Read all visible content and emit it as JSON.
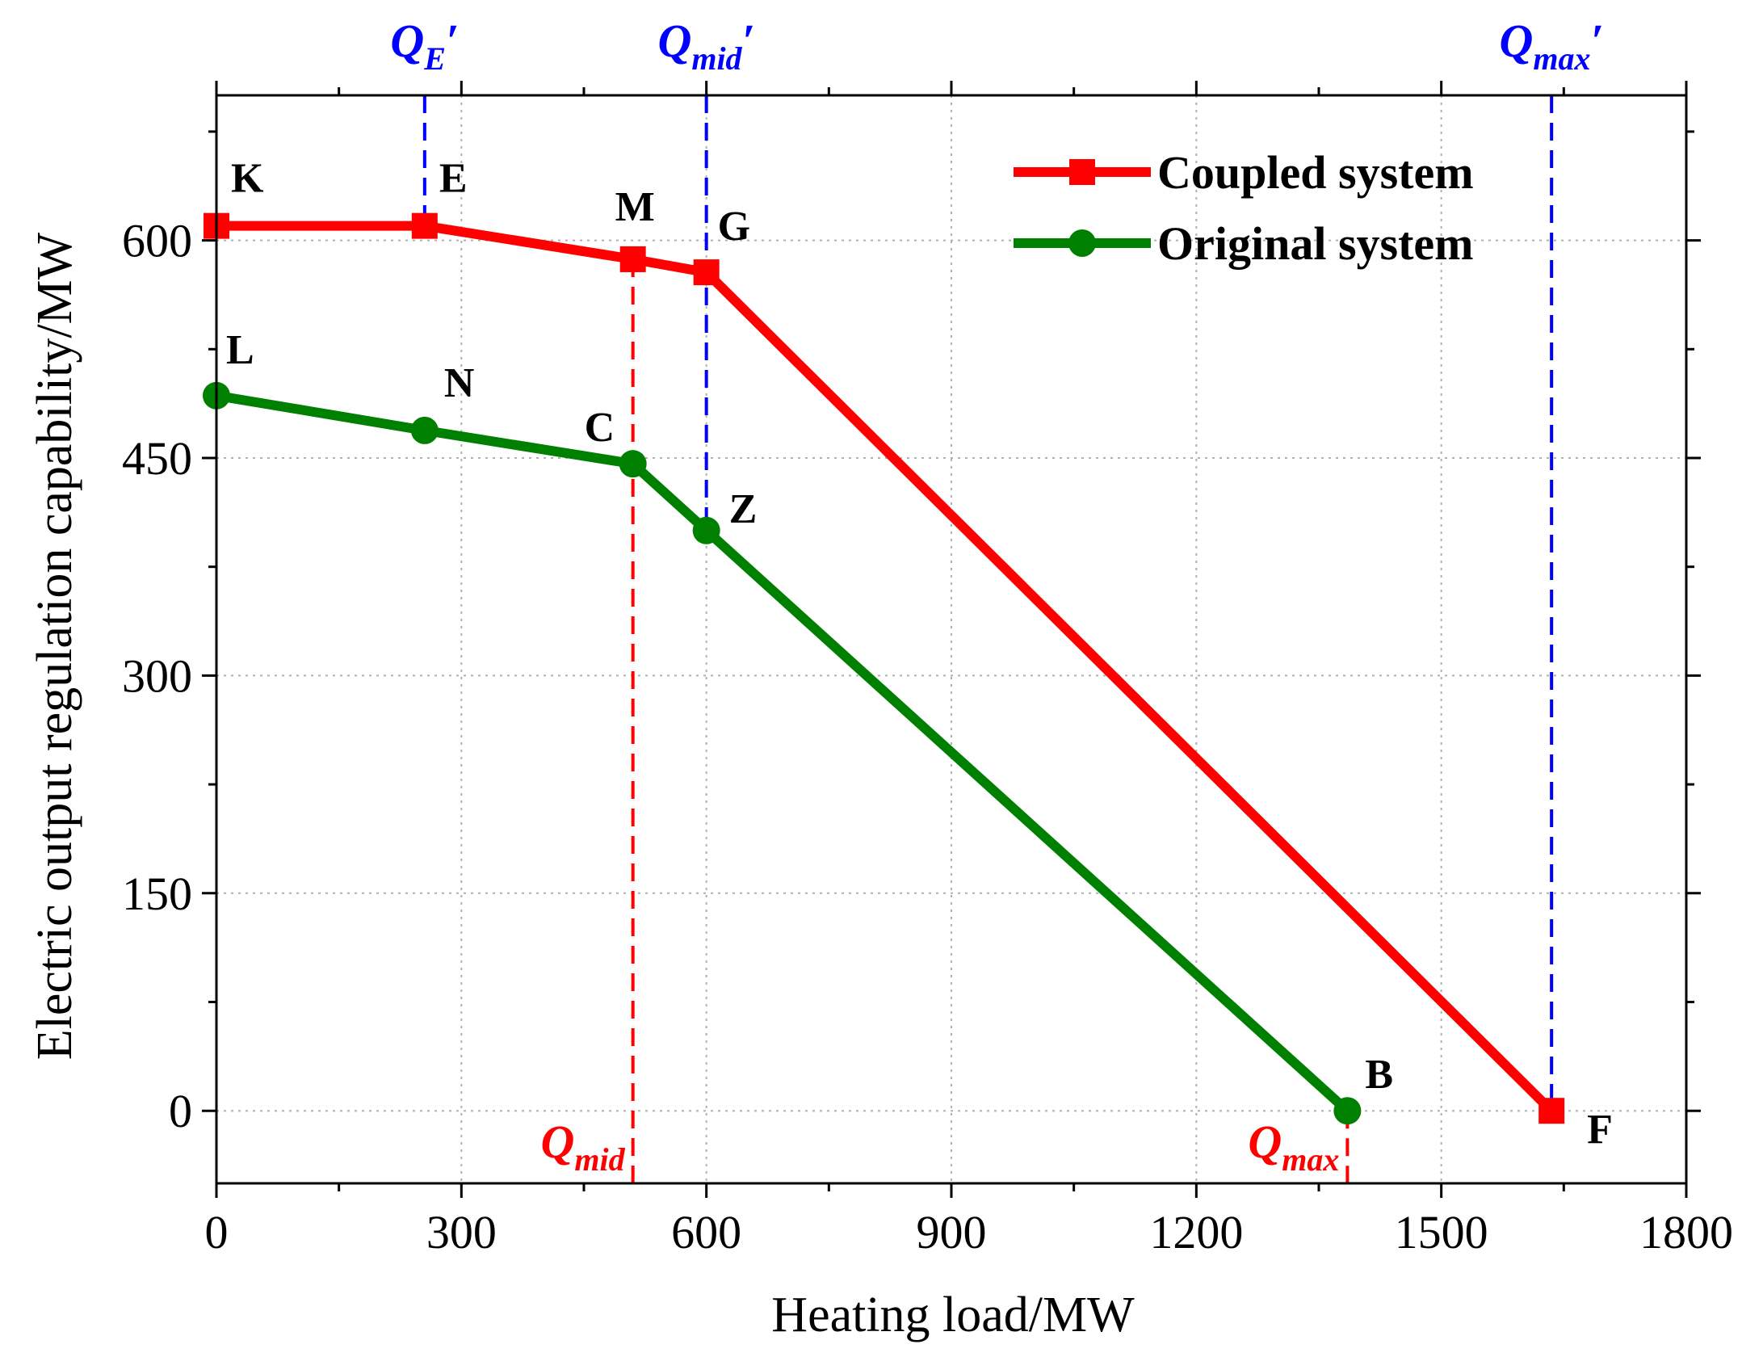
{
  "chart_data": {
    "type": "line",
    "xlabel": "Heating load/MW",
    "ylabel": "Electric output regulation capability/MW",
    "xlim": [
      0,
      1800
    ],
    "ylim": [
      -50,
      700
    ],
    "x_ticks": [
      0,
      300,
      600,
      900,
      1200,
      1500,
      1800
    ],
    "y_ticks": [
      0,
      150,
      300,
      450,
      600
    ],
    "x_tick_labels": [
      "0",
      "300",
      "600",
      "900",
      "1200",
      "1500",
      "1800"
    ],
    "y_tick_labels": [
      "0",
      "150",
      "300",
      "450",
      "600"
    ],
    "grid": true,
    "legend_position": "top-right",
    "series": [
      {
        "name": "Coupled system",
        "color": "#ff0000",
        "marker": "square",
        "points": [
          {
            "label": "K",
            "x": 0,
            "y": 610
          },
          {
            "label": "E",
            "x": 255,
            "y": 610
          },
          {
            "label": "M",
            "x": 510,
            "y": 587
          },
          {
            "label": "G",
            "x": 600,
            "y": 578
          },
          {
            "label": "F",
            "x": 1635,
            "y": 0
          }
        ]
      },
      {
        "name": "Original system",
        "color": "#008000",
        "marker": "circle",
        "points": [
          {
            "label": "L",
            "x": 0,
            "y": 493
          },
          {
            "label": "N",
            "x": 255,
            "y": 469
          },
          {
            "label": "C",
            "x": 510,
            "y": 446
          },
          {
            "label": "Z",
            "x": 600,
            "y": 400
          },
          {
            "label": "B",
            "x": 1385,
            "y": 0
          }
        ]
      }
    ],
    "reference_lines": [
      {
        "x": 255,
        "color": "#0000ff",
        "main": "Q",
        "sub": "E",
        "prime": "′",
        "position": "top",
        "from": 610
      },
      {
        "x": 600,
        "color": "#0000ff",
        "main": "Q",
        "sub": "mid",
        "prime": "′",
        "position": "top",
        "from": 400
      },
      {
        "x": 1635,
        "color": "#0000ff",
        "main": "Q",
        "sub": "max",
        "prime": "′",
        "position": "top",
        "from": 0
      },
      {
        "x": 510,
        "color": "#ff0000",
        "main": "Q",
        "sub": "mid",
        "prime": "",
        "position": "bottom",
        "from": 587
      },
      {
        "x": 1385,
        "color": "#ff0000",
        "main": "Q",
        "sub": "max",
        "prime": "",
        "position": "bottom",
        "from": 0
      }
    ]
  }
}
